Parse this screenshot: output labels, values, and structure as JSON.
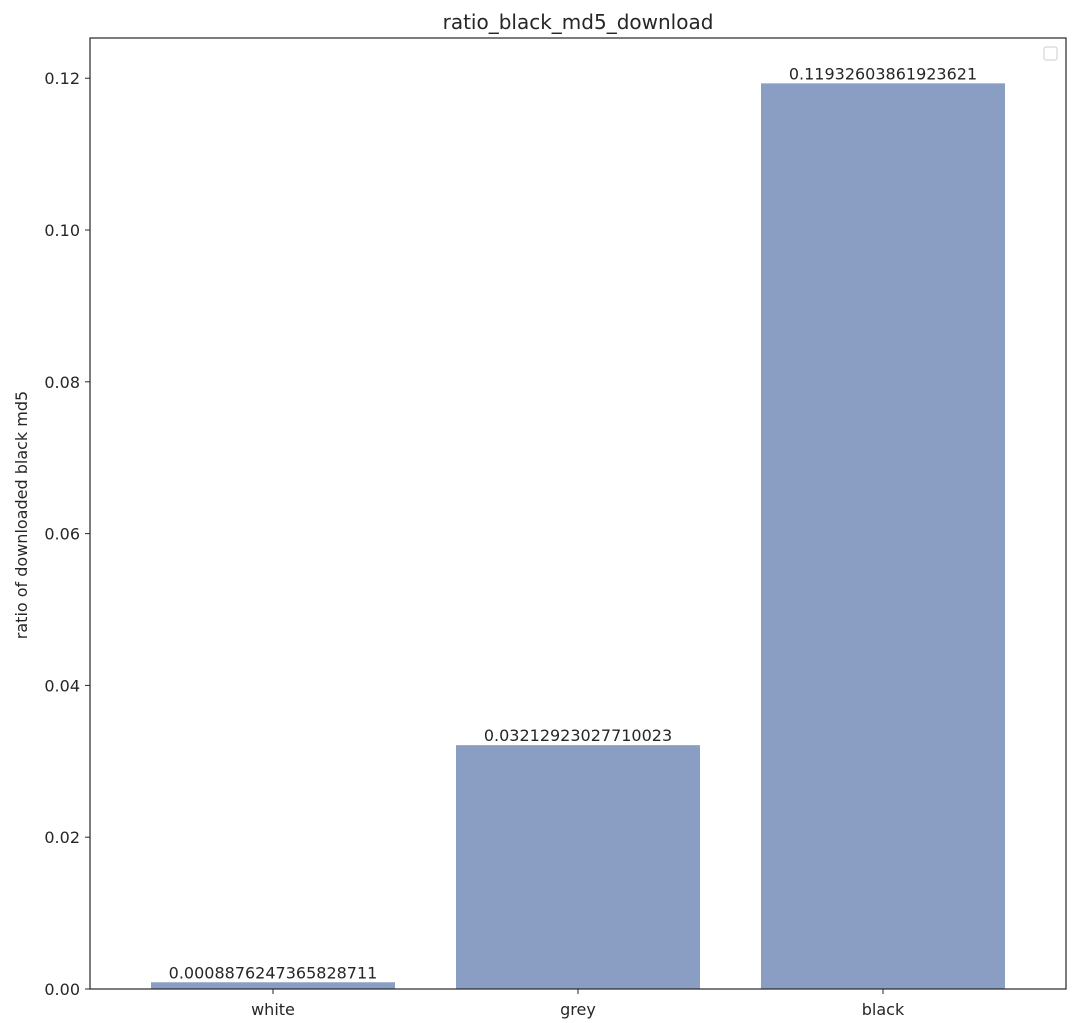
{
  "chart_data": {
    "type": "bar",
    "title": "ratio_black_md5_download",
    "xlabel": "",
    "ylabel": "ratio of downloaded black md5",
    "categories": [
      "white",
      "grey",
      "black"
    ],
    "values": [
      0.0008876247365828711,
      0.03212923027710023,
      0.11932603861923621
    ],
    "data_labels": [
      "0.0008876247365828711",
      "0.03212923027710023",
      "0.11932603861923621"
    ],
    "ylim": [
      0,
      0.1253
    ],
    "yticks": [
      0.0,
      0.02,
      0.04,
      0.06,
      0.08,
      0.1,
      0.12
    ],
    "ytick_labels": [
      "0.00",
      "0.02",
      "0.04",
      "0.06",
      "0.08",
      "0.10",
      "0.12"
    ],
    "grid": false,
    "legend": "top-right, empty",
    "bar_color": "#8a9ec4"
  }
}
